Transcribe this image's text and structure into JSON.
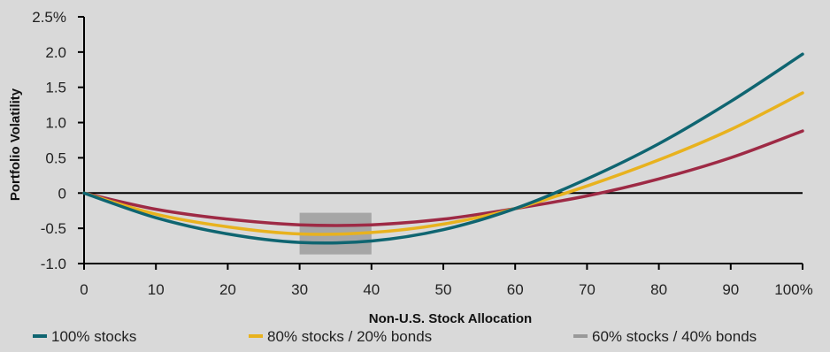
{
  "chart_data": {
    "type": "line",
    "xlabel": "Non-U.S. Stock Allocation",
    "ylabel": "Portfolio Volatility",
    "xlim": [
      0,
      100
    ],
    "ylim": [
      -1.0,
      2.5
    ],
    "x_ticks": [
      0,
      10,
      20,
      30,
      40,
      50,
      60,
      70,
      80,
      90,
      100
    ],
    "x_tick_labels": [
      "0",
      "10",
      "20",
      "30",
      "40",
      "50",
      "60",
      "70",
      "80",
      "90",
      "100%"
    ],
    "y_ticks": [
      2.5,
      2.0,
      1.5,
      1.0,
      0.5,
      0,
      -0.5,
      -1.0
    ],
    "y_tick_labels": [
      "2.5%",
      "2.0",
      "1.5",
      "1.0",
      "0.5",
      "0",
      "-0.5",
      "-1.0"
    ],
    "x": [
      0,
      10,
      20,
      30,
      40,
      50,
      60,
      70,
      80,
      90,
      100
    ],
    "series": [
      {
        "name": "100% stocks",
        "color": "#0f6571",
        "values": [
          0,
          -0.35,
          -0.58,
          -0.7,
          -0.68,
          -0.52,
          -0.22,
          0.2,
          0.7,
          1.3,
          1.97
        ]
      },
      {
        "name": "80% stocks / 20% bonds",
        "color": "#e8b21e",
        "values": [
          0,
          -0.3,
          -0.48,
          -0.58,
          -0.56,
          -0.44,
          -0.22,
          0.1,
          0.47,
          0.9,
          1.42
        ]
      },
      {
        "name": "60% stocks / 40% bonds",
        "color": "#9e2a45",
        "values": [
          0,
          -0.23,
          -0.37,
          -0.45,
          -0.45,
          -0.37,
          -0.22,
          -0.04,
          0.2,
          0.5,
          0.88
        ]
      }
    ],
    "highlight_range": {
      "x": [
        30,
        40
      ],
      "y": [
        -0.87,
        -0.28
      ],
      "color": "#a6a6a6"
    },
    "legend": [
      {
        "label": "100% stocks",
        "color": "#0f6571"
      },
      {
        "label": "80% stocks / 20% bonds",
        "color": "#e8b21e"
      },
      {
        "label": "60% stocks / 40% bonds",
        "color": "#999999"
      }
    ],
    "legend_position": "bottom",
    "grid": false
  }
}
